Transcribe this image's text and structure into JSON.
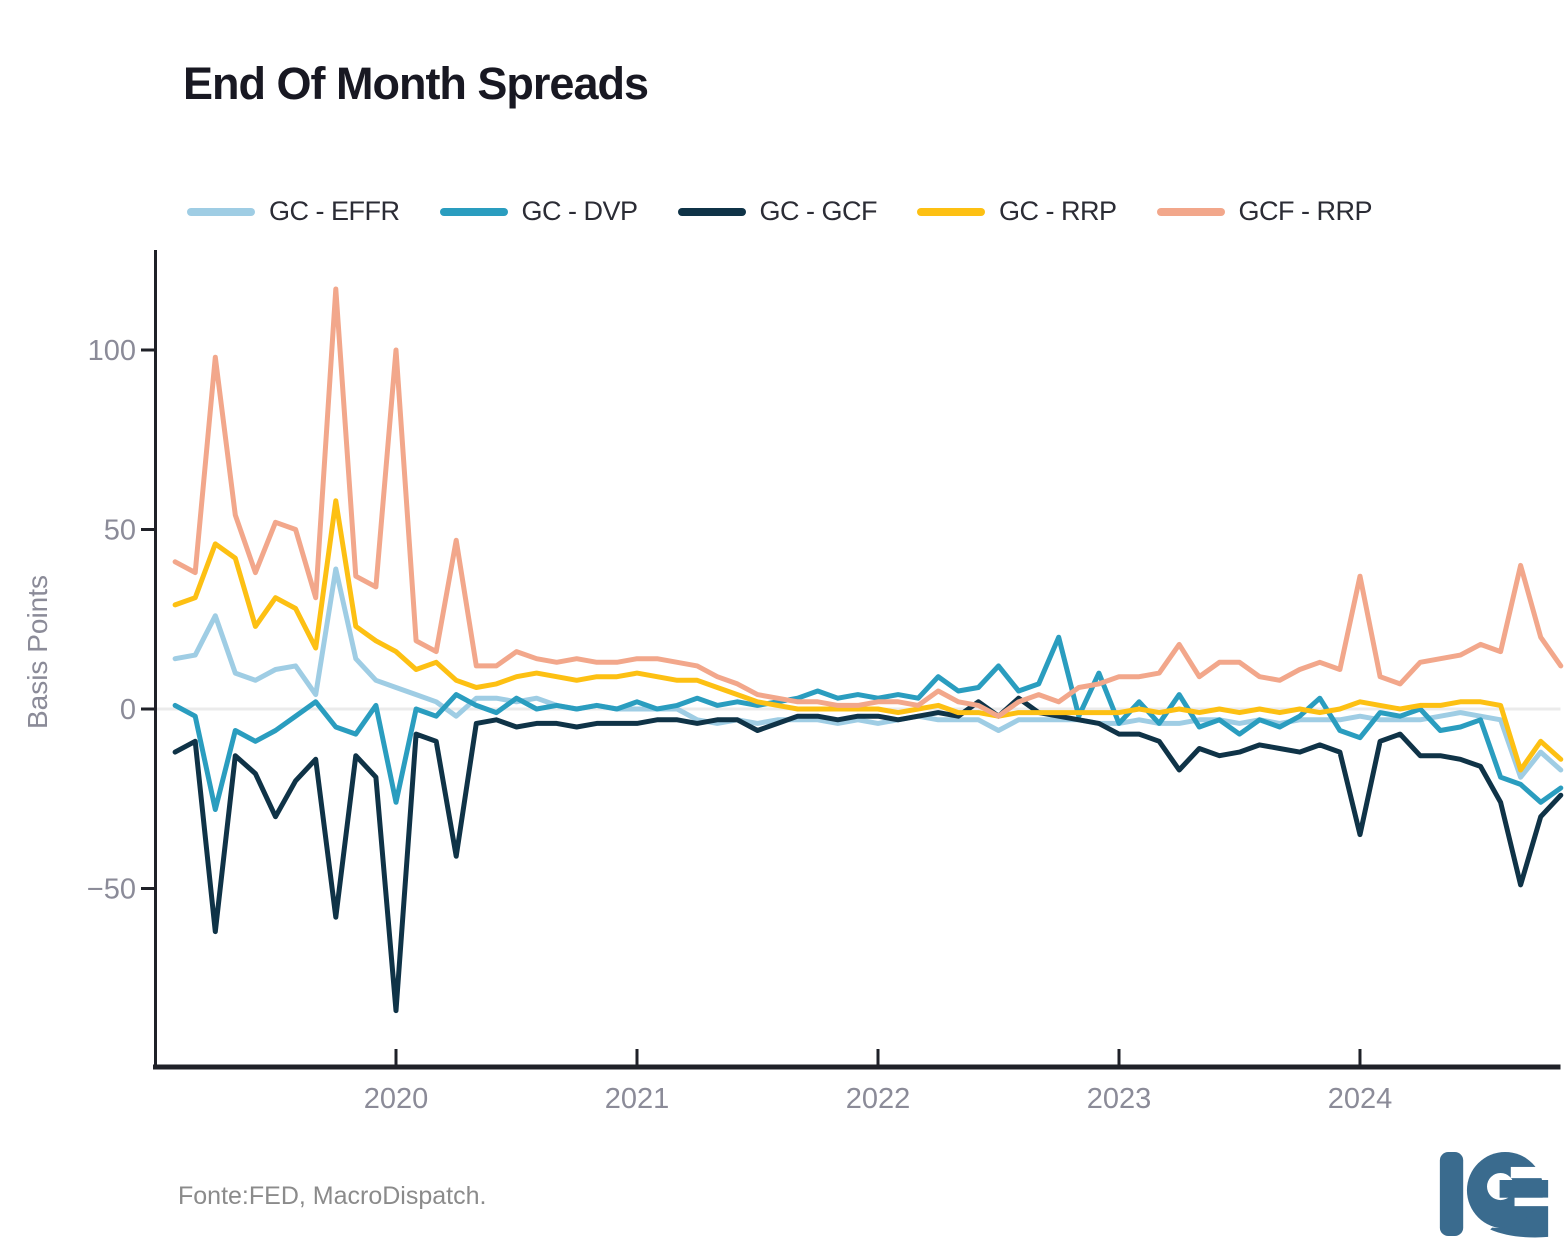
{
  "header": {
    "title": "End Of Month Spreads"
  },
  "footer": {
    "source_note": "Fonte:FED, MacroDispatch."
  },
  "logo": {
    "name": "Ie brand mark",
    "color": "#3a6b8e"
  },
  "colors": {
    "background": "#ffffff",
    "title_text": "#181822",
    "legend_text": "#2b2c35",
    "tick_text": "#8b8b98",
    "axis_spine": "#1f2128",
    "zero_line": "#ebebeb",
    "footer_text": "#8b8b8b"
  },
  "chart_data": {
    "type": "line",
    "title": "End Of Month Spreads",
    "xlabel": "",
    "ylabel": "Basis Points",
    "x_frequency": "monthly",
    "x_start": "2019-01",
    "x_end": "2024-10",
    "ylim": [
      -100,
      128
    ],
    "grid": false,
    "zero_line": true,
    "legend_position": "top",
    "yticks": [
      {
        "label": "100",
        "value": 100
      },
      {
        "label": "50",
        "value": 50
      },
      {
        "label": "0",
        "value": 0
      },
      {
        "label": "−50",
        "value": -50
      }
    ],
    "xticks": [
      {
        "label": "2020",
        "month_index": 11
      },
      {
        "label": "2021",
        "month_index": 23
      },
      {
        "label": "2022",
        "month_index": 35
      },
      {
        "label": "2023",
        "month_index": 47
      },
      {
        "label": "2024",
        "month_index": 59
      }
    ],
    "months": [
      "2019-01",
      "2019-02",
      "2019-03",
      "2019-04",
      "2019-05",
      "2019-06",
      "2019-07",
      "2019-08",
      "2019-09",
      "2019-10",
      "2019-11",
      "2019-12",
      "2020-01",
      "2020-02",
      "2020-03",
      "2020-04",
      "2020-05",
      "2020-06",
      "2020-07",
      "2020-08",
      "2020-09",
      "2020-10",
      "2020-11",
      "2020-12",
      "2021-01",
      "2021-02",
      "2021-03",
      "2021-04",
      "2021-05",
      "2021-06",
      "2021-07",
      "2021-08",
      "2021-09",
      "2021-10",
      "2021-11",
      "2021-12",
      "2022-01",
      "2022-02",
      "2022-03",
      "2022-04",
      "2022-05",
      "2022-06",
      "2022-07",
      "2022-08",
      "2022-09",
      "2022-10",
      "2022-11",
      "2022-12",
      "2023-01",
      "2023-02",
      "2023-03",
      "2023-04",
      "2023-05",
      "2023-06",
      "2023-07",
      "2023-08",
      "2023-09",
      "2023-10",
      "2023-11",
      "2023-12",
      "2024-01",
      "2024-02",
      "2024-03",
      "2024-04",
      "2024-05",
      "2024-06",
      "2024-07",
      "2024-08",
      "2024-09",
      "2024-10"
    ],
    "series": [
      {
        "name": "GC - EFFR",
        "color": "#9fcde4",
        "values": [
          14,
          15,
          26,
          10,
          8,
          11,
          12,
          4,
          39,
          14,
          8,
          6,
          4,
          2,
          -2,
          3,
          3,
          2,
          3,
          1,
          0,
          1,
          0,
          0,
          0,
          0,
          -3,
          -4,
          -3,
          -4,
          -3,
          -3,
          -3,
          -4,
          -3,
          -4,
          -3,
          -2,
          -3,
          -3,
          -3,
          -6,
          -3,
          -3,
          -3,
          -3,
          -4,
          -4,
          -3,
          -4,
          -4,
          -3,
          -3,
          -4,
          -3,
          -4,
          -3,
          -3,
          -3,
          -2,
          -3,
          -3,
          -3,
          -2,
          -1,
          -2,
          -3,
          -19,
          -12,
          -17
        ]
      },
      {
        "name": "GC - DVP",
        "color": "#2a9dbf",
        "values": [
          1,
          -2,
          -28,
          -6,
          -9,
          -6,
          -2,
          2,
          -5,
          -7,
          1,
          -26,
          0,
          -2,
          4,
          1,
          -1,
          3,
          0,
          1,
          0,
          1,
          0,
          2,
          0,
          1,
          3,
          1,
          2,
          1,
          2,
          3,
          5,
          3,
          4,
          3,
          4,
          3,
          9,
          5,
          6,
          12,
          5,
          7,
          20,
          -2,
          10,
          -4,
          2,
          -4,
          4,
          -5,
          -3,
          -7,
          -3,
          -5,
          -2,
          3,
          -6,
          -8,
          -1,
          -2,
          0,
          -6,
          -5,
          -3,
          -19,
          -21,
          -26,
          -22
        ]
      },
      {
        "name": "GC - GCF",
        "color": "#0f3347",
        "values": [
          -12,
          -9,
          -62,
          -13,
          -18,
          -30,
          -20,
          -14,
          -58,
          -13,
          -19,
          -84,
          -7,
          -9,
          -41,
          -4,
          -3,
          -5,
          -4,
          -4,
          -5,
          -4,
          -4,
          -4,
          -3,
          -3,
          -4,
          -3,
          -3,
          -6,
          -4,
          -2,
          -2,
          -3,
          -2,
          -2,
          -3,
          -2,
          -1,
          -2,
          2,
          -2,
          3,
          -1,
          -2,
          -3,
          -4,
          -7,
          -7,
          -9,
          -17,
          -11,
          -13,
          -12,
          -10,
          -11,
          -12,
          -10,
          -12,
          -35,
          -9,
          -7,
          -13,
          -13,
          -14,
          -16,
          -26,
          -49,
          -30,
          -24
        ]
      },
      {
        "name": "GC - RRP",
        "color": "#fdc013",
        "values": [
          29,
          31,
          46,
          42,
          23,
          31,
          28,
          17,
          58,
          23,
          19,
          16,
          11,
          13,
          8,
          6,
          7,
          9,
          10,
          9,
          8,
          9,
          9,
          10,
          9,
          8,
          8,
          6,
          4,
          2,
          1,
          0,
          0,
          0,
          0,
          0,
          -1,
          0,
          1,
          -1,
          -1,
          -2,
          -1,
          -1,
          -1,
          -1,
          -1,
          -1,
          0,
          -1,
          0,
          -1,
          0,
          -1,
          0,
          -1,
          0,
          -1,
          0,
          2,
          1,
          0,
          1,
          1,
          2,
          2,
          1,
          -17,
          -9,
          -14
        ]
      },
      {
        "name": "GCF - RRP",
        "color": "#f2a78b",
        "values": [
          41,
          38,
          98,
          54,
          38,
          52,
          50,
          31,
          117,
          37,
          34,
          100,
          19,
          16,
          47,
          12,
          12,
          16,
          14,
          13,
          14,
          13,
          13,
          14,
          14,
          13,
          12,
          9,
          7,
          4,
          3,
          2,
          2,
          1,
          1,
          2,
          2,
          1,
          5,
          2,
          1,
          -2,
          2,
          4,
          2,
          6,
          7,
          9,
          9,
          10,
          18,
          9,
          13,
          13,
          9,
          8,
          11,
          13,
          11,
          37,
          9,
          7,
          13,
          14,
          15,
          18,
          16,
          40,
          20,
          12
        ]
      }
    ]
  }
}
